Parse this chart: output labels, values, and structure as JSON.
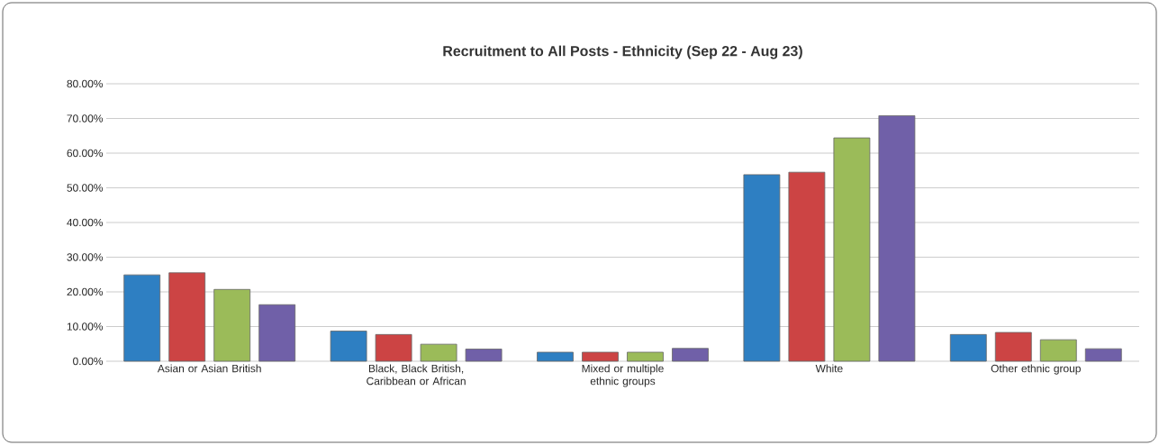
{
  "chart_data": {
    "type": "bar",
    "title": "**Recruitment to All Posts - Ethnicity (Sep 22 - Aug 23)**",
    "categories": [
      "Asian or Asian British",
      "Black, Black British, Caribbean or African",
      "Mixed or multiple ethnic groups",
      "White",
      "Other ethnic group"
    ],
    "series": [
      {
        "color": "#2e7fc2",
        "values": [
          24.9,
          8.7,
          2.6,
          53.8,
          7.7
        ]
      },
      {
        "color": "#cc4444",
        "values": [
          25.5,
          7.7,
          2.6,
          54.5,
          8.3
        ]
      },
      {
        "color": "#9bbb59",
        "values": [
          20.7,
          4.9,
          2.6,
          64.4,
          6.2
        ]
      },
      {
        "color": "#7060a8",
        "values": [
          16.3,
          3.5,
          3.7,
          70.8,
          3.6
        ]
      }
    ],
    "ylim": [
      0,
      80
    ],
    "yticks": [
      {
        "value": 0,
        "label": "0.00%"
      },
      {
        "value": 10,
        "label": "10.00%"
      },
      {
        "value": 20,
        "label": "20.00%"
      },
      {
        "value": 30,
        "label": "30.00%"
      },
      {
        "value": 40,
        "label": "40.00%"
      },
      {
        "value": 50,
        "label": "50.00%"
      },
      {
        "value": 60,
        "label": "60.00%"
      },
      {
        "value": 70,
        "label": "70.00%"
      },
      {
        "value": 80,
        "label": "80.00%"
      }
    ],
    "grid": true
  }
}
